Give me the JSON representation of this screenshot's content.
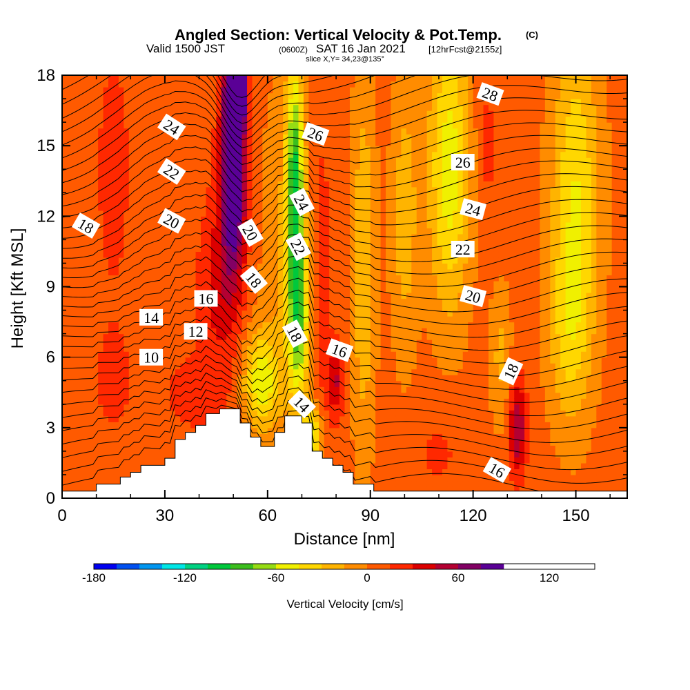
{
  "header": {
    "title": "Angled Section: Vertical Velocity & Pot.Temp.",
    "title_unit": "(C)",
    "valid_prefix": "Valid 1500 JST",
    "valid_utc": "(0600Z)",
    "valid_date": "SAT 16 Jan 2021",
    "forecast": "[12hrFcst@2155z]",
    "slice": "slice X,Y= 34,23@135°"
  },
  "chart_data": {
    "type": "heatmap",
    "xlabel": "Distance [nm]",
    "ylabel": "Height [Kft MSL]",
    "xlim": [
      0,
      165
    ],
    "ylim": [
      0,
      18
    ],
    "x_ticks": [
      "0",
      "30",
      "60",
      "90",
      "120",
      "150"
    ],
    "y_ticks": [
      "0",
      "3",
      "6",
      "9",
      "12",
      "15",
      "18"
    ],
    "colorbar": {
      "label": "Vertical Velocity [cm/s]",
      "min": -180,
      "max": 150,
      "step": 15,
      "tick_labels": [
        "-180",
        "-120",
        "-60",
        "0",
        "60",
        "120"
      ],
      "tick_values": [
        -180,
        -120,
        -60,
        0,
        60,
        120
      ],
      "colors": [
        "#0000f0",
        "#0050f0",
        "#0096f0",
        "#00e6e6",
        "#00d282",
        "#00c83c",
        "#3cbe1e",
        "#96dc14",
        "#f0f000",
        "#ffd700",
        "#ffb400",
        "#ff8c00",
        "#ff5a00",
        "#ff2800",
        "#dc0000",
        "#b40032",
        "#820064",
        "#5a0096"
      ]
    },
    "terrain_nm_kft": [
      [
        0,
        0.3
      ],
      [
        10,
        0.3
      ],
      [
        10,
        0.6
      ],
      [
        17,
        0.6
      ],
      [
        17,
        0.9
      ],
      [
        20,
        0.9
      ],
      [
        20,
        1.1
      ],
      [
        23,
        1.1
      ],
      [
        23,
        1.4
      ],
      [
        30,
        1.4
      ],
      [
        30,
        1.7
      ],
      [
        33,
        1.7
      ],
      [
        33,
        2.5
      ],
      [
        36,
        2.5
      ],
      [
        36,
        2.8
      ],
      [
        39,
        2.8
      ],
      [
        39,
        3.1
      ],
      [
        42,
        3.1
      ],
      [
        42,
        3.6
      ],
      [
        46,
        3.6
      ],
      [
        46,
        3.8
      ],
      [
        52,
        3.8
      ],
      [
        52,
        3.2
      ],
      [
        55,
        3.2
      ],
      [
        55,
        2.6
      ],
      [
        58,
        2.6
      ],
      [
        58,
        2.2
      ],
      [
        62,
        2.2
      ],
      [
        62,
        2.8
      ],
      [
        65,
        2.8
      ],
      [
        65,
        3.5
      ],
      [
        70,
        3.5
      ],
      [
        70,
        3.2
      ],
      [
        73,
        3.2
      ],
      [
        73,
        2.0
      ],
      [
        76,
        2.0
      ],
      [
        76,
        1.7
      ],
      [
        79,
        1.7
      ],
      [
        79,
        1.4
      ],
      [
        82,
        1.4
      ],
      [
        82,
        1.1
      ],
      [
        85,
        1.1
      ],
      [
        85,
        0.6
      ],
      [
        91,
        0.6
      ],
      [
        91,
        0.3
      ],
      [
        165,
        0.3
      ]
    ],
    "velocity_features": [
      {
        "x": 50,
        "y": 14.5,
        "rx": 3.5,
        "ry": 4.5,
        "w": 115
      },
      {
        "x": 51,
        "y": 17.5,
        "rx": 2.5,
        "ry": 1.5,
        "w": 120
      },
      {
        "x": 46,
        "y": 9,
        "rx": 6,
        "ry": 4,
        "w": 30
      },
      {
        "x": 38,
        "y": 4.5,
        "rx": 8,
        "ry": 1.5,
        "w": 20
      },
      {
        "x": 65,
        "y": 10,
        "rx": 7,
        "ry": 8,
        "w": -20
      },
      {
        "x": 58,
        "y": 5,
        "rx": 5,
        "ry": 2,
        "w": -60
      },
      {
        "x": 68,
        "y": 13.5,
        "rx": 2.5,
        "ry": 5,
        "w": -90
      },
      {
        "x": 69,
        "y": 7.5,
        "rx": 3,
        "ry": 3.5,
        "w": -70
      },
      {
        "x": 73,
        "y": 2.5,
        "rx": 3,
        "ry": 1.5,
        "w": -60
      },
      {
        "x": 76,
        "y": 9,
        "rx": 3,
        "ry": 9,
        "w": 15
      },
      {
        "x": 80,
        "y": 5,
        "rx": 2.5,
        "ry": 1.5,
        "w": 40
      },
      {
        "x": 88,
        "y": 10,
        "rx": 3.5,
        "ry": 8,
        "w": -35
      },
      {
        "x": 100,
        "y": 12,
        "rx": 4,
        "ry": 6,
        "w": -30
      },
      {
        "x": 113,
        "y": 14,
        "rx": 6,
        "ry": 6,
        "w": -60
      },
      {
        "x": 128,
        "y": 6,
        "rx": 3,
        "ry": 3,
        "w": -25
      },
      {
        "x": 133,
        "y": 3,
        "rx": 2.5,
        "ry": 2,
        "w": 55
      },
      {
        "x": 124,
        "y": 15,
        "rx": 3,
        "ry": 3,
        "w": 15
      },
      {
        "x": 150,
        "y": 13,
        "rx": 7,
        "ry": 7,
        "w": -50
      },
      {
        "x": 148,
        "y": 7,
        "rx": 6,
        "ry": 4,
        "w": -30
      },
      {
        "x": 15,
        "y": 14,
        "rx": 5,
        "ry": 5,
        "w": 18
      },
      {
        "x": 15,
        "y": 5,
        "rx": 8,
        "ry": 3,
        "w": 12
      },
      {
        "x": 110,
        "y": 2,
        "rx": 8,
        "ry": 2,
        "w": 12
      }
    ],
    "contour_labels": [
      {
        "text": "24",
        "x": 32,
        "y": 15.8,
        "angle": 33
      },
      {
        "text": "22",
        "x": 32,
        "y": 13.9,
        "angle": 33
      },
      {
        "text": "20",
        "x": 32,
        "y": 11.8,
        "angle": 28
      },
      {
        "text": "18",
        "x": 7,
        "y": 11.6,
        "angle": 30
      },
      {
        "text": "20",
        "x": 55,
        "y": 11.3,
        "angle": 60
      },
      {
        "text": "18",
        "x": 56,
        "y": 9.3,
        "angle": 50
      },
      {
        "text": "16",
        "x": 42,
        "y": 8.5,
        "angle": 0
      },
      {
        "text": "14",
        "x": 26,
        "y": 7.7,
        "angle": 0
      },
      {
        "text": "12",
        "x": 39,
        "y": 7.1,
        "angle": 0
      },
      {
        "text": "10",
        "x": 26,
        "y": 6.0,
        "angle": 0
      },
      {
        "text": "26",
        "x": 74,
        "y": 15.5,
        "angle": 20
      },
      {
        "text": "24",
        "x": 70,
        "y": 12.6,
        "angle": 62
      },
      {
        "text": "22",
        "x": 69,
        "y": 10.7,
        "angle": 62
      },
      {
        "text": "18",
        "x": 68,
        "y": 7.0,
        "angle": 62
      },
      {
        "text": "16",
        "x": 81,
        "y": 6.3,
        "angle": 20
      },
      {
        "text": "14",
        "x": 70,
        "y": 4.0,
        "angle": 45
      },
      {
        "text": "28",
        "x": 125,
        "y": 17.2,
        "angle": 20
      },
      {
        "text": "26",
        "x": 117,
        "y": 14.3,
        "angle": 0
      },
      {
        "text": "24",
        "x": 120,
        "y": 12.3,
        "angle": 15
      },
      {
        "text": "22",
        "x": 117,
        "y": 10.6,
        "angle": 0
      },
      {
        "text": "20",
        "x": 120,
        "y": 8.6,
        "angle": 15
      },
      {
        "text": "18",
        "x": 131,
        "y": 5.4,
        "angle": -65
      },
      {
        "text": "16",
        "x": 127,
        "y": 1.2,
        "angle": 30
      }
    ]
  },
  "colors": {
    "background": "#ffffff",
    "terrain": "#ffffff",
    "contour": "#000000"
  }
}
